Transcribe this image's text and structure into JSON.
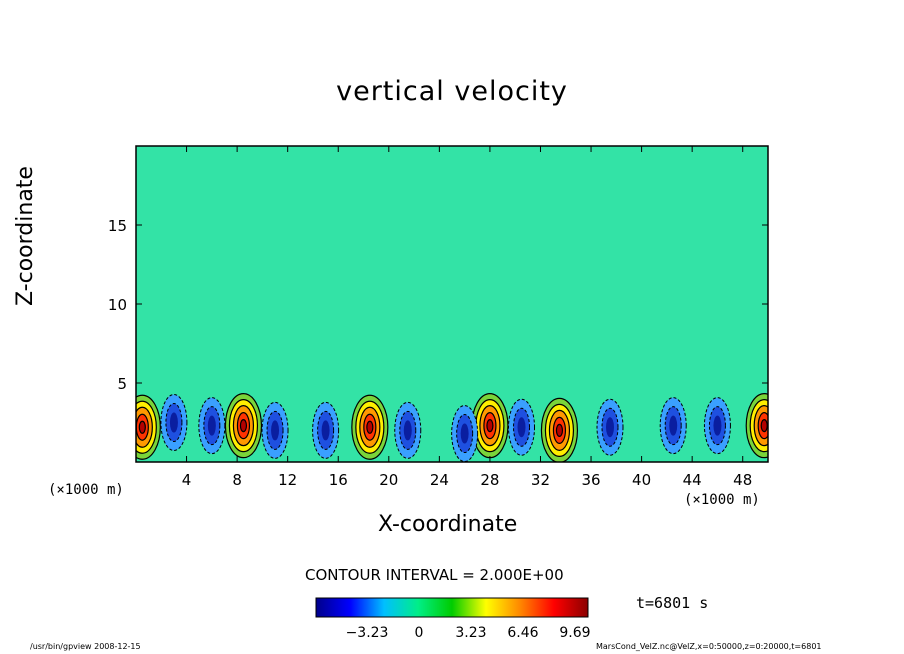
{
  "chart_data": {
    "type": "heatmap",
    "title": "vertical velocity",
    "xlabel": "X-coordinate",
    "ylabel": "Z-coordinate",
    "x_unit": "(×1000 m)",
    "xlim": [
      0,
      50
    ],
    "ylim": [
      0,
      20
    ],
    "x_ticks": [
      4,
      8,
      12,
      16,
      20,
      24,
      28,
      32,
      36,
      40,
      44,
      48
    ],
    "y_ticks": [
      5,
      10,
      15
    ],
    "contour_interval": "CONTOUR INTERVAL = 2.000E+00",
    "colorbar": {
      "ticks": [
        "−3.23",
        "0",
        "3.23",
        "6.46",
        "9.69"
      ],
      "tick_values": [
        -3.23,
        0,
        3.23,
        6.46,
        9.69
      ],
      "range": [
        -6.4,
        10.5
      ],
      "colors": [
        "#00008b",
        "#0000ff",
        "#00bfff",
        "#00ee88",
        "#00cc00",
        "#ffff00",
        "#ff8800",
        "#ff0000",
        "#8b0000"
      ]
    },
    "updraft_cells": [
      {
        "x": 0.5,
        "z": 2.2,
        "peak": 8.0
      },
      {
        "x": 8.5,
        "z": 2.3,
        "peak": 9.0
      },
      {
        "x": 18.5,
        "z": 2.2,
        "peak": 9.5
      },
      {
        "x": 28.0,
        "z": 2.3,
        "peak": 7.5
      },
      {
        "x": 33.5,
        "z": 2.0,
        "peak": 8.5
      },
      {
        "x": 49.7,
        "z": 2.3,
        "peak": 8.0
      }
    ],
    "downdraft_cells": [
      {
        "x": 3.0,
        "z": 2.5,
        "peak": -4.0
      },
      {
        "x": 6.0,
        "z": 2.3,
        "peak": -4.5
      },
      {
        "x": 11.0,
        "z": 2.0,
        "peak": -5.0
      },
      {
        "x": 15.0,
        "z": 2.0,
        "peak": -5.5
      },
      {
        "x": 21.5,
        "z": 2.0,
        "peak": -5.0
      },
      {
        "x": 26.0,
        "z": 1.8,
        "peak": -4.0
      },
      {
        "x": 30.5,
        "z": 2.2,
        "peak": -4.0
      },
      {
        "x": 37.5,
        "z": 2.2,
        "peak": -4.5
      },
      {
        "x": 42.5,
        "z": 2.3,
        "peak": -3.0
      },
      {
        "x": 46.0,
        "z": 2.3,
        "peak": -4.5
      }
    ]
  },
  "time_label": "t=6801 s",
  "footer_left": "/usr/bin/gpview   2008-12-15",
  "footer_right": "MarsCond_VelZ.nc@VelZ,x=0:50000,z=0:20000,t=6801"
}
